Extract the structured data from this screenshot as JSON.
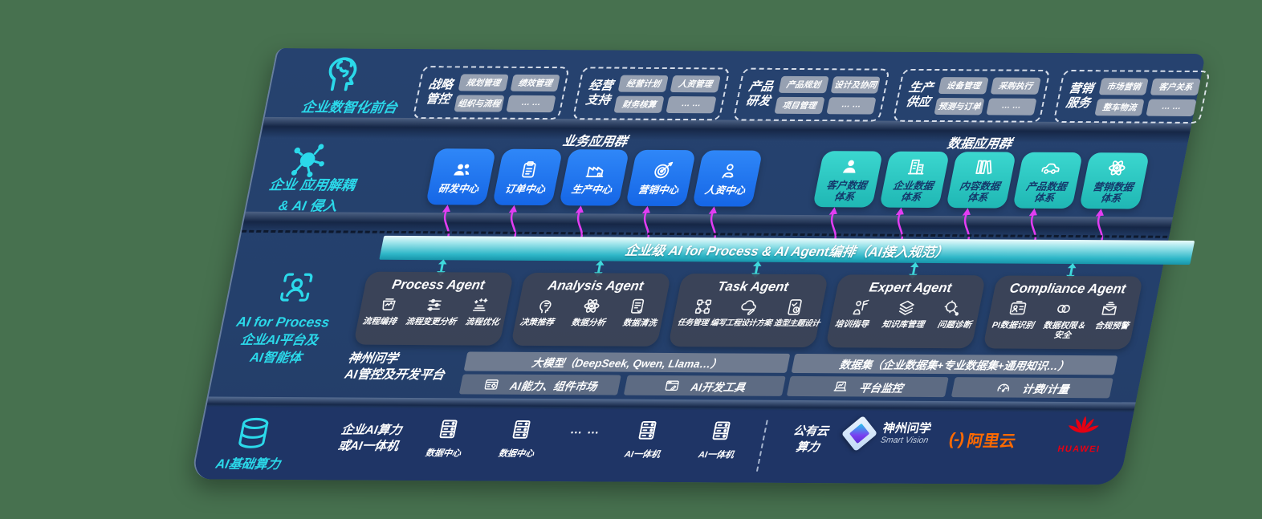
{
  "palette": {
    "bg_green": "#47714F",
    "navy": "#24406C",
    "navy_dark": "#1F3566",
    "blue": "#1E78F0",
    "teal": "#2FCAC4",
    "cyan": "#2BD9EA",
    "magenta": "#E23DF2",
    "banner_teal": "#2FB7C8",
    "orange_aliyun": "#FF6A00",
    "red_huawei": "#E60012"
  },
  "front_stage": {
    "icon": "brain-head-icon",
    "label": "企业数智化前台",
    "groups": [
      {
        "title": "战略\n管控",
        "chips": [
          "规划管理",
          "绩效管理",
          "组织与流程",
          "… …"
        ]
      },
      {
        "title": "经营\n支持",
        "chips": [
          "经营计划",
          "人资管理",
          "财务核算",
          "… …"
        ]
      },
      {
        "title": "产品\n研发",
        "chips": [
          "产品规划",
          "设计及协同",
          "项目管理",
          "… …"
        ]
      },
      {
        "title": "生产\n供应",
        "chips": [
          "设备管理",
          "采购执行",
          "预测与订单",
          "… …"
        ]
      },
      {
        "title": "营销\n服务",
        "chips": [
          "市场营销",
          "客户关系",
          "整车物流",
          "… …"
        ]
      }
    ]
  },
  "app_layer": {
    "icon": "molecule-icon",
    "label": "企业 应用解耦\n& AI 侵入",
    "business_group": {
      "title": "业务应用群",
      "apps": [
        {
          "label": "研发中心",
          "icon": "team-icon"
        },
        {
          "label": "订单中心",
          "icon": "clipboard-icon"
        },
        {
          "label": "生产中心",
          "icon": "factory-icon"
        },
        {
          "label": "营销中心",
          "icon": "target-icon"
        },
        {
          "label": "人资中心",
          "icon": "person-arrows-icon"
        }
      ]
    },
    "data_group": {
      "title": "数据应用群",
      "apps": [
        {
          "label": "客户数据\n体系",
          "icon": "person-icon"
        },
        {
          "label": "企业数据\n体系",
          "icon": "building-icon"
        },
        {
          "label": "内容数据\n体系",
          "icon": "books-icon"
        },
        {
          "label": "产品数据\n体系",
          "icon": "car-icon"
        },
        {
          "label": "营销数据\n体系",
          "icon": "atom-icon"
        }
      ]
    }
  },
  "ai_layer": {
    "icon": "person-scan-icon",
    "label_en": "AI for Process",
    "label_zh": "企业AI平台及\nAI智能体",
    "banner": "企业级 AI for Process & AI Agent编排（AI接入规范）",
    "agents": [
      {
        "title": "Process Agent",
        "items": [
          {
            "label": "流程编排",
            "icon": "flow-monitor-icon"
          },
          {
            "label": "流程变更分析",
            "icon": "sliders-icon"
          },
          {
            "label": "流程优化",
            "icon": "optimize-icon"
          }
        ]
      },
      {
        "title": "Analysis Agent",
        "items": [
          {
            "label": "决策推荐",
            "icon": "decision-head-icon"
          },
          {
            "label": "数据分析",
            "icon": "atom-icon"
          },
          {
            "label": "数据清洗",
            "icon": "doc-clean-icon"
          }
        ]
      },
      {
        "title": "Task Agent",
        "items": [
          {
            "label": "任务管理",
            "icon": "task-grid-icon"
          },
          {
            "label": "编写工程设计方案",
            "icon": "cloud-design-icon"
          },
          {
            "label": "造型主题设计",
            "icon": "tablet-check-icon"
          }
        ]
      },
      {
        "title": "Expert Agent",
        "items": [
          {
            "label": "培训指导",
            "icon": "training-icon"
          },
          {
            "label": "知识库管理",
            "icon": "knowledge-stack-icon"
          },
          {
            "label": "问题诊断",
            "icon": "diagnose-icon"
          }
        ]
      },
      {
        "title": "Compliance Agent",
        "items": [
          {
            "label": "PI数据识别",
            "icon": "id-card-icon"
          },
          {
            "label": "数据权限＆\n安全",
            "icon": "data-link-icon"
          },
          {
            "label": "合规预警",
            "icon": "alert-mail-icon"
          }
        ]
      }
    ],
    "platform": {
      "label": "神州问学\nAI管控及开发平台",
      "model_bar": "大模型（DeepSeek, Qwen, Llama…）",
      "dataset_bar": "数据集（企业数据集+专业数据集+通用知识…）",
      "tools": [
        {
          "label": "AI能力、组件市场",
          "icon": "ai-market-icon"
        },
        {
          "label": "AI开发工具",
          "icon": "dev-tools-icon"
        },
        {
          "label": "平台监控",
          "icon": "laptop-chart-icon"
        },
        {
          "label": "计费/计量",
          "icon": "gauge-icon"
        }
      ]
    }
  },
  "infra_layer": {
    "icon": "database-icon",
    "label": "AI基础算力",
    "compute_label": "企业AI算力\n或AI一体机",
    "nodes": [
      {
        "label": "数据中心",
        "icon": "server-icon"
      },
      {
        "label": "数据中心",
        "icon": "server-icon"
      },
      {
        "label": "… …",
        "icon": ""
      },
      {
        "label": "AI一体机",
        "icon": "server-icon"
      },
      {
        "label": "AI一体机",
        "icon": "server-icon"
      }
    ],
    "public_cloud": "公有云\n算力",
    "vendors": [
      {
        "name": "神州问学",
        "sub": "Smart Vision",
        "logo_icon": "smartvision-diamond-icon"
      },
      {
        "name": "阿里云",
        "mark": "(-)",
        "logo_icon": "aliyun-bracket-icon"
      },
      {
        "name": "HUAWEI",
        "logo_icon": "huawei-flower-icon"
      }
    ]
  }
}
